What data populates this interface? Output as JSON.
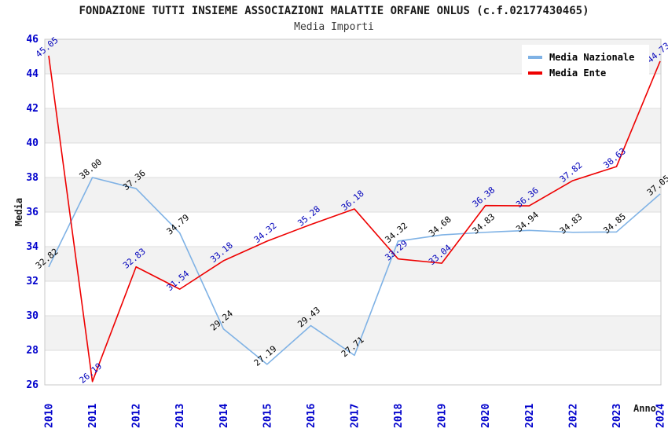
{
  "title": "FONDAZIONE TUTTI INSIEME ASSOCIAZIONI MALATTIE ORFANE ONLUS (c.f.02177430465)",
  "subtitle": "Media Importi",
  "chart_data": {
    "type": "line",
    "x": [
      2010,
      2011,
      2012,
      2013,
      2014,
      2015,
      2016,
      2017,
      2018,
      2019,
      2020,
      2021,
      2022,
      2023,
      2024
    ],
    "series": [
      {
        "name": "Media Nazionale",
        "color": "#7FB2E5",
        "label_color": "#000000",
        "values": [
          32.82,
          38.0,
          37.36,
          34.79,
          29.24,
          27.19,
          29.43,
          27.71,
          34.32,
          34.68,
          34.83,
          34.94,
          34.83,
          34.85,
          37.05
        ]
      },
      {
        "name": "Media Ente",
        "color": "#EE0000",
        "label_color": "#0000BB",
        "values": [
          45.05,
          26.19,
          32.83,
          31.54,
          33.18,
          34.32,
          35.28,
          36.18,
          33.29,
          33.04,
          36.38,
          36.36,
          37.82,
          38.63,
          44.73
        ]
      }
    ],
    "xlabel": "Anno",
    "ylabel": "Media",
    "ylim": [
      26,
      46
    ],
    "ytick_step": 2,
    "grid": true,
    "legend_position": "top-right",
    "tick_color": "#0000CC",
    "band_colors": [
      "#ffffff",
      "#F2F2F2"
    ],
    "gridline_color": "#DCDCDC",
    "border_color": "#C9C9C9",
    "label_decimals": 2
  }
}
